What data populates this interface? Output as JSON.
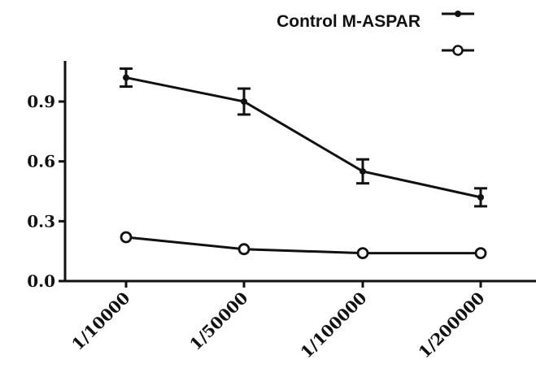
{
  "chart_data": {
    "type": "line",
    "categories": [
      "1/10000",
      "1/50000",
      "1/100000",
      "1/200000"
    ],
    "ylim": [
      0,
      1.1
    ],
    "yticks": [
      "0.0",
      "0.3",
      "0.6",
      "0.9"
    ],
    "grid": false,
    "legend_text": "Control M-ASPAR",
    "legend_position": "top-right",
    "series": [
      {
        "marker": "filled-circle",
        "values": [
          1.02,
          0.9,
          0.55,
          0.42
        ],
        "errors": [
          0.045,
          0.065,
          0.06,
          0.045
        ],
        "color": "#111111"
      },
      {
        "marker": "open-circle",
        "values": [
          0.22,
          0.16,
          0.14,
          0.14
        ],
        "errors": [
          0.0,
          0.0,
          0.0,
          0.0
        ],
        "color": "#111111"
      }
    ]
  }
}
